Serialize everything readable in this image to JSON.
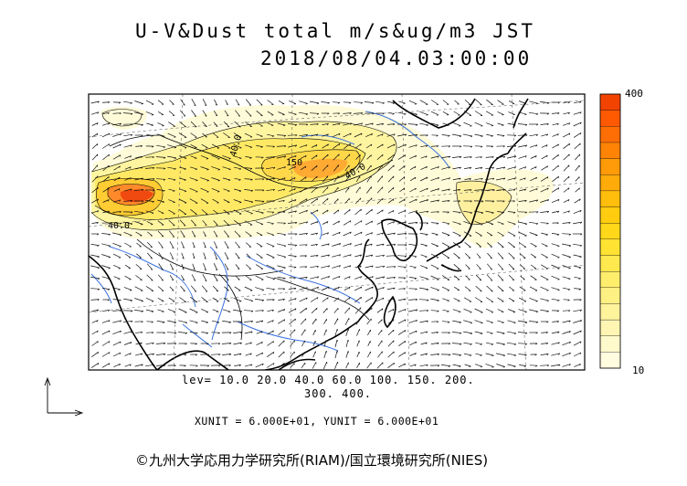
{
  "title": "U-V&Dust total m/s&ug/m3 JST",
  "datetime": "2018/08/04.03:00:00",
  "colorbar": {
    "max_label": "400",
    "min_label": "10",
    "colors": [
      "#fffce0",
      "#fffacc",
      "#fff6b4",
      "#fff39c",
      "#fff084",
      "#ffee6c",
      "#ffe94e",
      "#ffe232",
      "#ffd81a",
      "#ffcc10",
      "#ffbd0c",
      "#ffab0a",
      "#ff9a08",
      "#ff8406",
      "#ff6e04",
      "#ff5a02",
      "#f24400"
    ]
  },
  "contour_labels": [
    "40.0",
    "150",
    "40.0",
    "40.0"
  ],
  "levels_line1": "lev=  10.0  20.0  40.0  60.0  100.  150.  200.",
  "levels_line2": "300.  400.",
  "units_line": "XUNIT = 6.000E+01, YUNIT = 6.000E+01",
  "credit": "©九州大学応用力学研究所(RIAM)/国立環境研究所(NIES)"
}
